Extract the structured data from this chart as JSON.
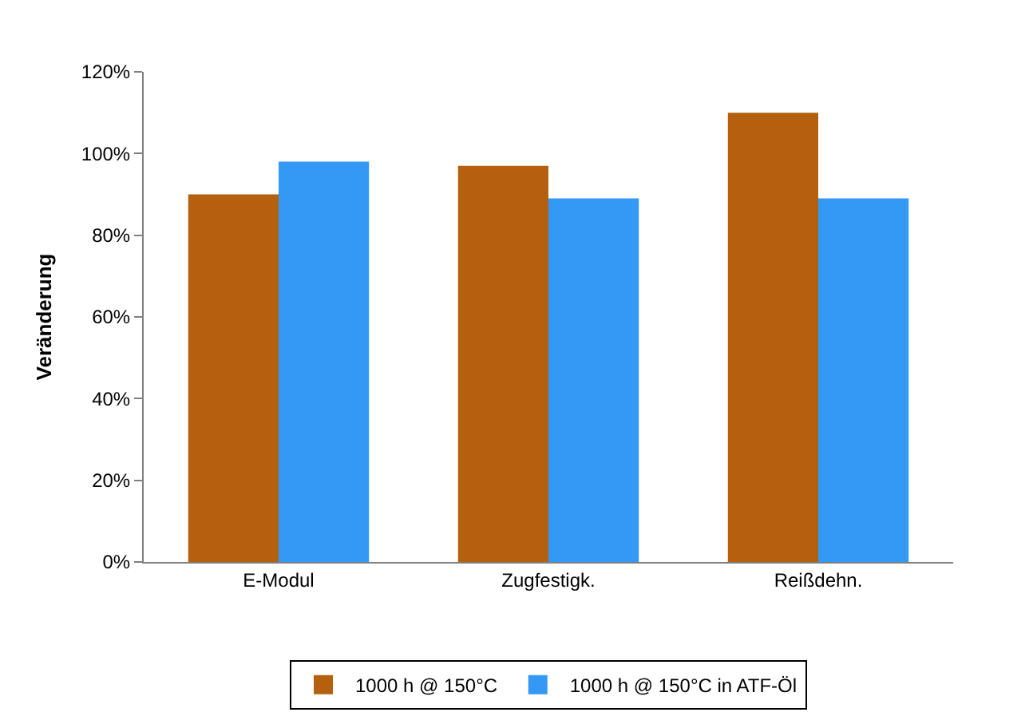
{
  "chart_data": {
    "type": "bar",
    "ylabel": "Veränderung",
    "categories": [
      "E-Modul",
      "Zugfestigk.",
      "Reißdehn."
    ],
    "series": [
      {
        "name": "1000 h @ 150°C",
        "color": "#b4600e",
        "values": [
          90,
          97,
          110
        ]
      },
      {
        "name": "1000 h @ 150°C in ATF-Öl",
        "color": "#3399f5",
        "values": [
          98,
          89,
          89
        ]
      }
    ],
    "ylim": [
      0,
      120
    ],
    "yticks": [
      {
        "value": 0,
        "label": "0%"
      },
      {
        "value": 20,
        "label": "20%"
      },
      {
        "value": 40,
        "label": "40%"
      },
      {
        "value": 60,
        "label": "60%"
      },
      {
        "value": 80,
        "label": "80%"
      },
      {
        "value": 100,
        "label": "100%"
      },
      {
        "value": 120,
        "label": "120%"
      }
    ],
    "legend": "bottom"
  }
}
